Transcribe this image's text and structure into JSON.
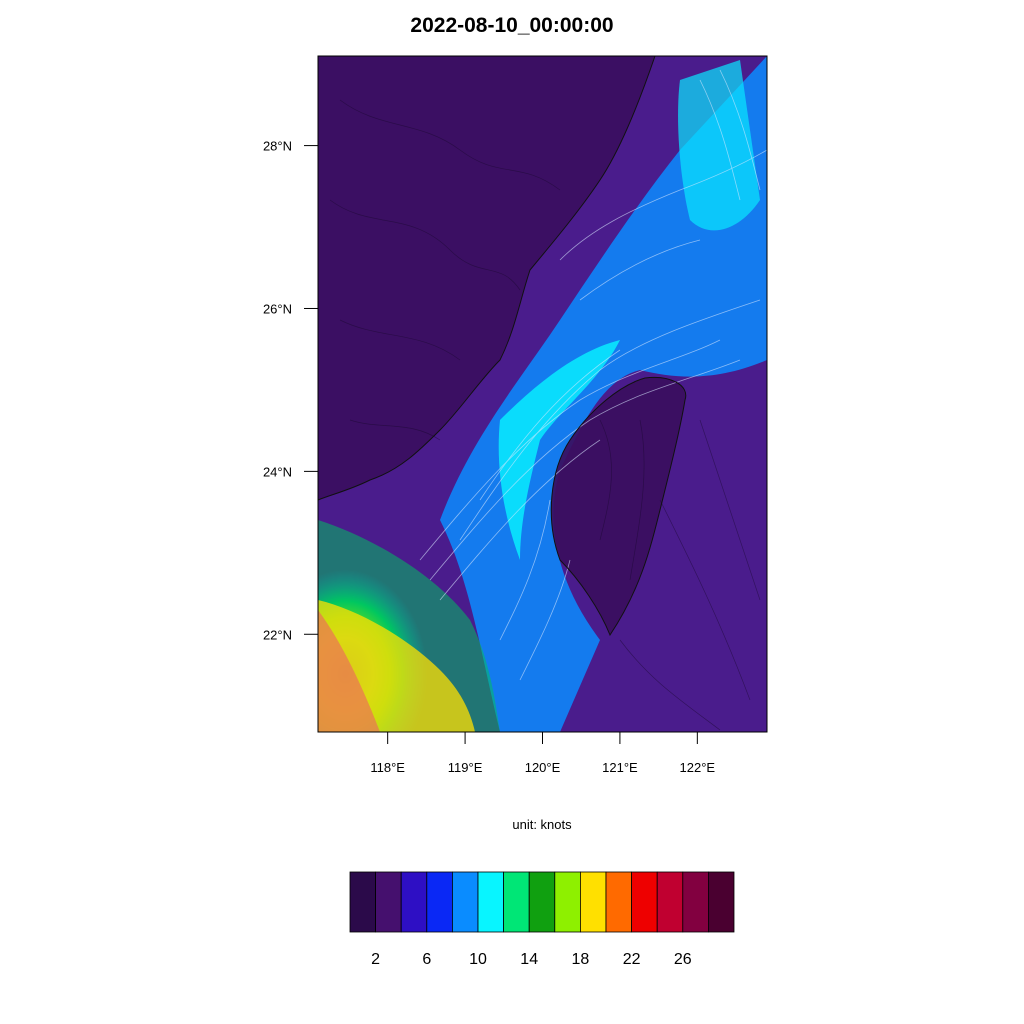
{
  "title": "2022-08-10_00:00:00",
  "unit_label": "unit: knots",
  "map": {
    "lon_range": [
      117.1,
      122.9
    ],
    "lat_range": [
      20.8,
      29.1
    ],
    "lon_ticks": [
      {
        "value": 118,
        "label": "118°E"
      },
      {
        "value": 119,
        "label": "119°E"
      },
      {
        "value": 120,
        "label": "120°E"
      },
      {
        "value": 121,
        "label": "121°E"
      },
      {
        "value": 122,
        "label": "122°E"
      }
    ],
    "lat_ticks": [
      {
        "value": 22,
        "label": "22°N"
      },
      {
        "value": 24,
        "label": "24°N"
      },
      {
        "value": 26,
        "label": "26°N"
      },
      {
        "value": 28,
        "label": "28°N"
      }
    ],
    "field": "wind speed with streamlines"
  },
  "colorbar": {
    "colors": [
      "#2b0a4a",
      "#45106e",
      "#2e0fc4",
      "#0a28f5",
      "#0a8cff",
      "#08f5ff",
      "#00e676",
      "#10a010",
      "#8ef000",
      "#ffe000",
      "#ff6a00",
      "#ee0000",
      "#c00030",
      "#820040",
      "#4a0030"
    ],
    "labels": [
      "2",
      "6",
      "10",
      "14",
      "18",
      "22",
      "26"
    ]
  }
}
